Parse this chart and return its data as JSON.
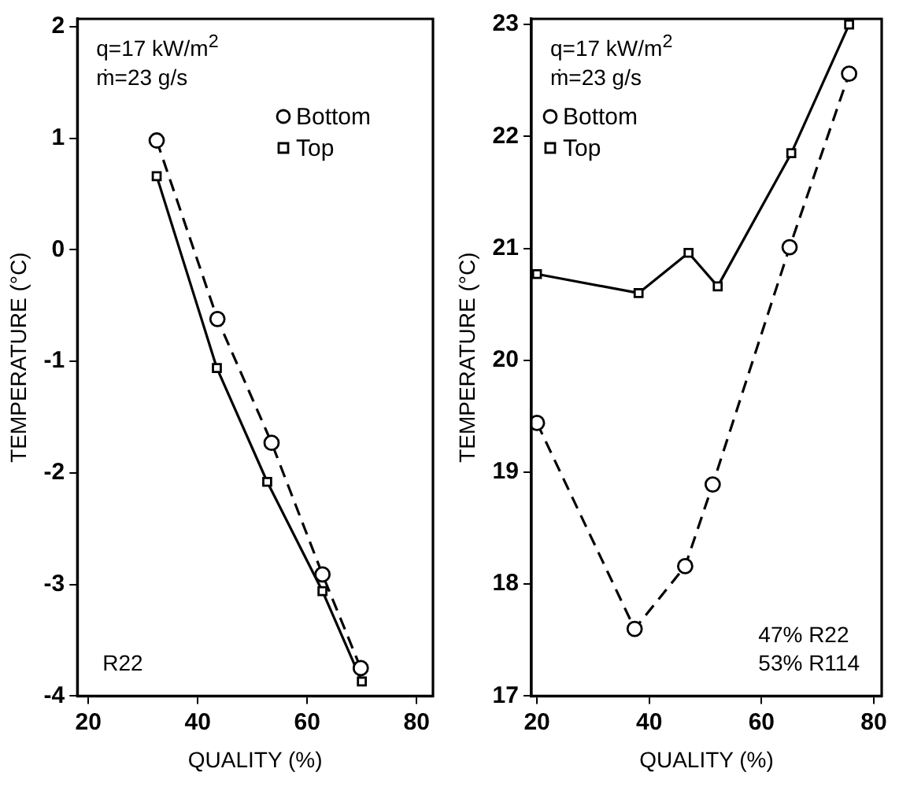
{
  "chart_data": [
    {
      "type": "line",
      "xlabel": "QUALITY (%)",
      "ylabel": "TEMPERATURE (°C)",
      "xlim": [
        18,
        83
      ],
      "xticks": [
        20,
        40,
        60,
        80
      ],
      "ylim": [
        -4,
        2.07
      ],
      "yticks": [
        -4,
        -3,
        -2,
        -1,
        0,
        1,
        2
      ],
      "grid": false,
      "legend": "top right",
      "annotations": [
        "q=17 kW/m$^{2}$",
        "ṁ=23 g/s",
        "R22"
      ],
      "series": [
        {
          "name": "Bottom",
          "color": "#000000",
          "marker": "circle",
          "line_style": "dashed",
          "x": [
            32.5,
            43.6,
            53.5,
            62.8,
            69.8
          ],
          "values": [
            0.98,
            -0.62,
            -1.73,
            -2.91,
            -3.75
          ]
        },
        {
          "name": "Top",
          "color": "#000000",
          "marker": "square",
          "line_style": "solid",
          "x": [
            32.5,
            43.5,
            52.7,
            62.8,
            70
          ],
          "values": [
            0.66,
            -1.06,
            -2.08,
            -3.06,
            -3.87
          ]
        }
      ]
    },
    {
      "type": "line",
      "xlabel": "QUALITY (%)",
      "ylabel": "TEMPERATURE (°C)",
      "xlim": [
        19,
        81.4
      ],
      "xticks": [
        20,
        40,
        60,
        80
      ],
      "ylim": [
        17,
        23.05
      ],
      "yticks": [
        17,
        18,
        19,
        20,
        21,
        22,
        23
      ],
      "grid": false,
      "legend": "top left",
      "annotations": [
        "q=17 kW/m$^{2}$",
        "ṁ=23 g/s",
        "47% R22",
        "53% R114"
      ],
      "series": [
        {
          "name": "Bottom",
          "color": "#000000",
          "marker": "circle",
          "line_style": "dashed",
          "x": [
            20,
            37.4,
            46.4,
            51.3,
            65,
            75.6
          ],
          "values": [
            19.44,
            17.6,
            18.16,
            18.89,
            21.01,
            22.56
          ]
        },
        {
          "name": "Top",
          "color": "#000000",
          "marker": "square",
          "line_style": "solid",
          "x": [
            20,
            38.1,
            47,
            52.2,
            65.3,
            75.6
          ],
          "values": [
            20.77,
            20.6,
            20.96,
            20.66,
            21.85,
            23.0
          ]
        }
      ]
    }
  ]
}
